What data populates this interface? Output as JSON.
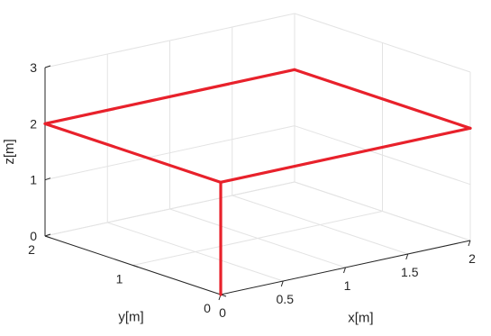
{
  "chart_data": {
    "type": "line",
    "projection": "3d",
    "xlabel": "x[m]",
    "ylabel": "y[m]",
    "zlabel": "z[m]",
    "xlim": [
      0,
      2
    ],
    "ylim": [
      0,
      2
    ],
    "zlim": [
      0,
      3
    ],
    "x_ticks": [
      "0",
      "0.5",
      "1",
      "1.5",
      "2"
    ],
    "y_ticks": [
      "0",
      "1",
      "2"
    ],
    "z_ticks": [
      "0",
      "1",
      "2",
      "3"
    ],
    "grid": true,
    "series": [
      {
        "color": "#e8212b",
        "points": [
          {
            "x": 0,
            "y": 0,
            "z": 0
          },
          {
            "x": 0,
            "y": 0,
            "z": 2
          },
          {
            "x": 2,
            "y": 0,
            "z": 2
          },
          {
            "x": 2,
            "y": 2,
            "z": 2
          },
          {
            "x": 0,
            "y": 2,
            "z": 2
          },
          {
            "x": 0,
            "y": 0,
            "z": 2
          }
        ]
      }
    ]
  }
}
